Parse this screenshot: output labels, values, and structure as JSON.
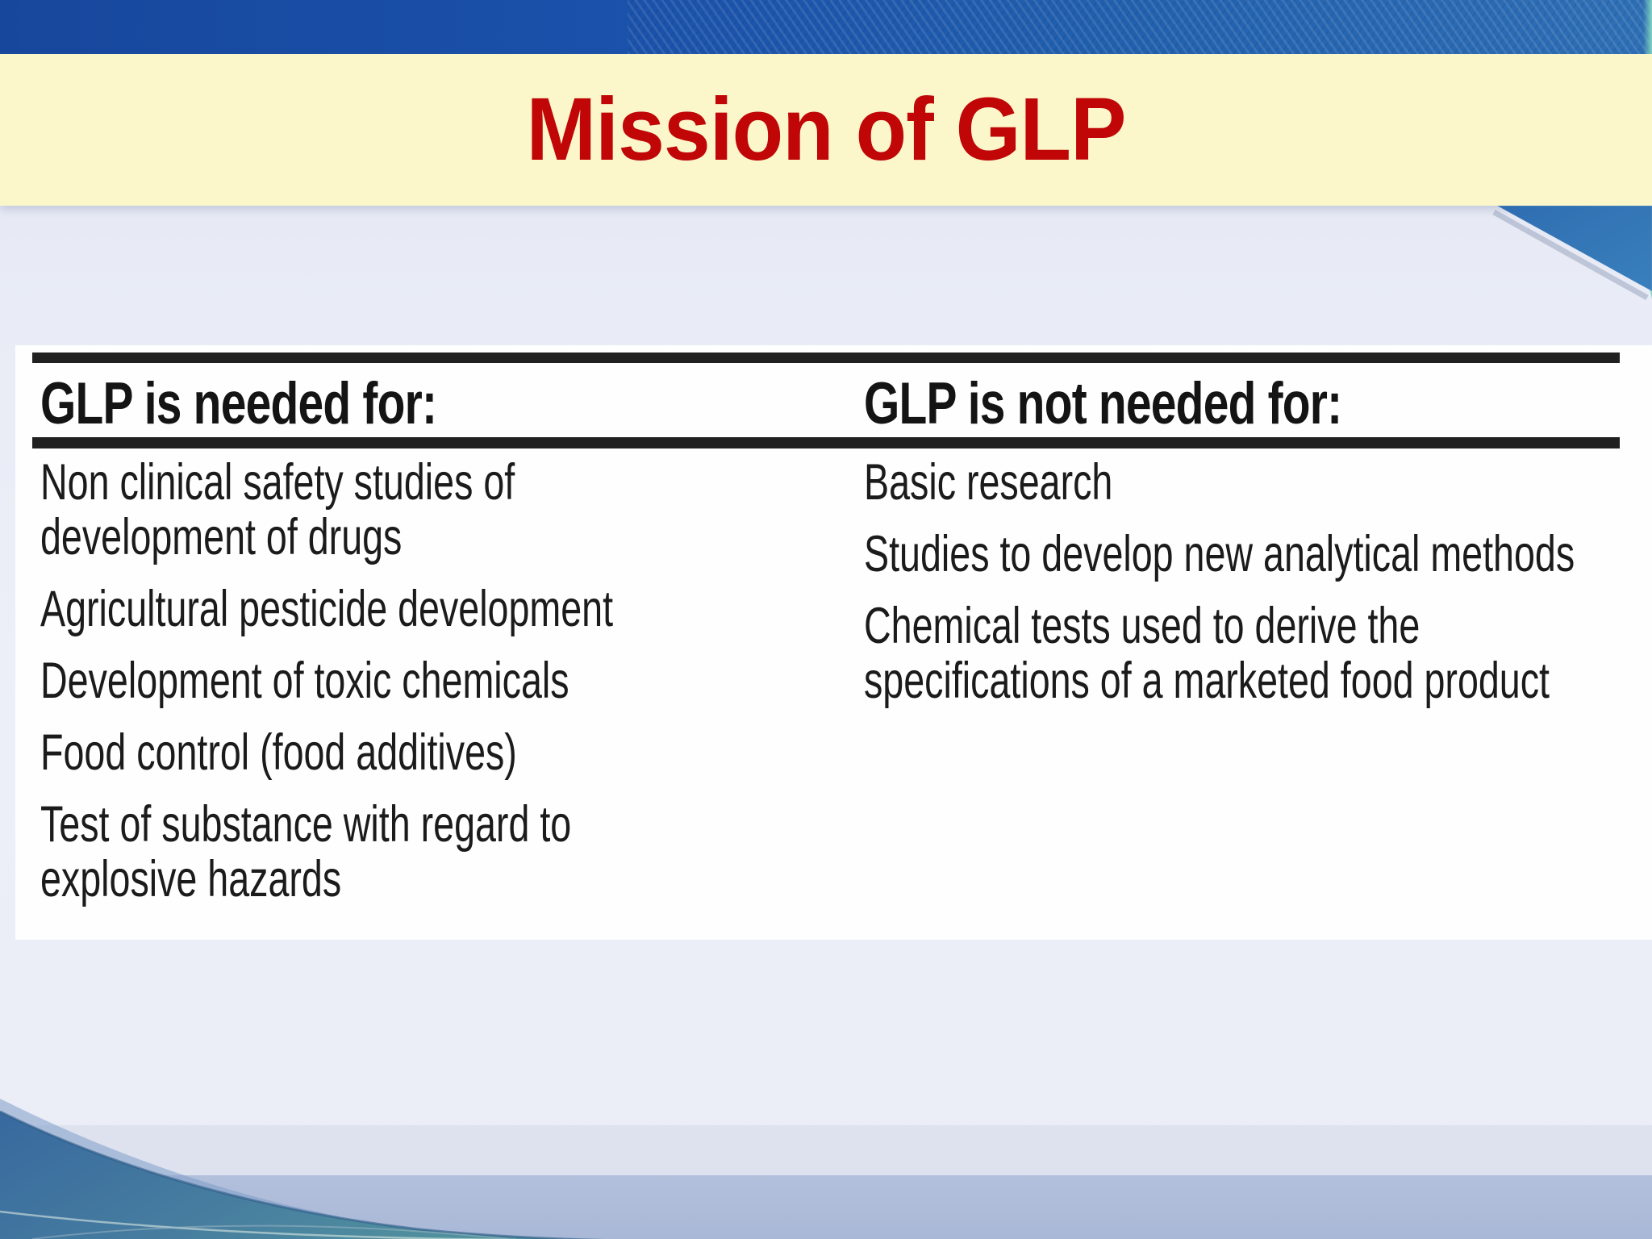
{
  "title": "Mission of GLP",
  "table": {
    "columns": [
      {
        "header": "GLP is needed for:",
        "items": [
          [
            "Non clinical safety studies of",
            "development of drugs"
          ],
          [
            "Agricultural pesticide development"
          ],
          [
            "Development of toxic chemicals"
          ],
          [
            "Food control (food additives)"
          ],
          [
            "Test of substance with regard to",
            "explosive hazards"
          ]
        ]
      },
      {
        "header": "GLP is not needed for:",
        "items": [
          [
            "Basic research"
          ],
          [
            "Studies to develop new analytical methods"
          ],
          [
            "Chemical tests used to derive the",
            "specifications of a marketed food product"
          ]
        ]
      }
    ]
  },
  "colors": {
    "top_bar_blue": "#1b52ab",
    "title_band_yellow": "#fbf7ca",
    "title_red": "#c00606",
    "table_rule_black": "#212121",
    "ribbon_blue": "#2e6cb0",
    "ribbon_teal": "#8fd8c8",
    "swoosh_blue": "#38699f",
    "swoosh_teal": "#52939e",
    "background_lavender": "#e9ecf6",
    "bottom_band_bluegray": "#aebbd9"
  }
}
